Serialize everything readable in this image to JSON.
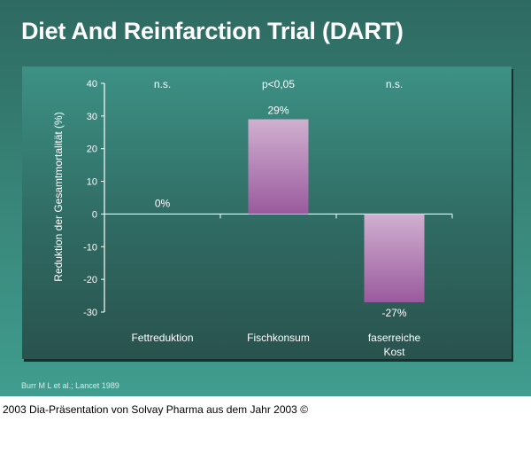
{
  "title": "Diet And Reinfarction Trial (DART)",
  "source": "Burr M L et al.; Lancet 1989",
  "caption": "2003 Dia-Präsentation von Solvay Pharma aus dem Jahr 2003 ©",
  "chart_data": {
    "type": "bar",
    "categories": [
      "Fettreduktion",
      "Fischkonsum",
      "faserreiche Kost"
    ],
    "values": [
      0,
      29,
      -27
    ],
    "data_labels": [
      "0%",
      "29%",
      "-27%"
    ],
    "significance": [
      "n.s.",
      "p<0,05",
      "n.s."
    ],
    "ylabel": "Reduktion der Gesamtmortalität (%)",
    "xlabel": "",
    "ylim": [
      -30,
      40
    ],
    "yticks": [
      40,
      30,
      20,
      10,
      0,
      -10,
      -20,
      -30
    ],
    "grid": false,
    "bar_color_top": "#d0b0d0",
    "bar_color_bottom": "#9a5a9e"
  }
}
